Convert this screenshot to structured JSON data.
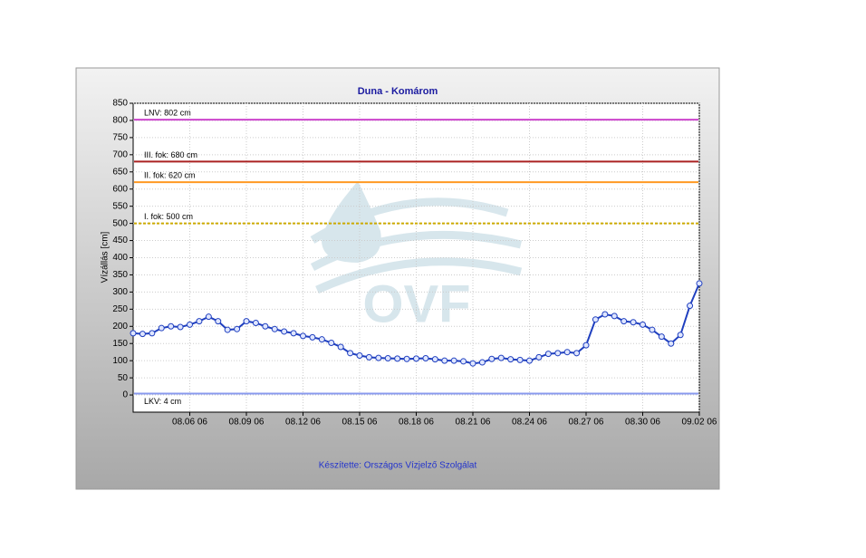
{
  "chart_data": {
    "type": "line",
    "title": "Duna - Komárom",
    "y_label": "Vízállás [cm]",
    "footer": "Készítette: Országos Vízjelző Szolgálat",
    "watermark": "OVF",
    "xlim": [
      "08.03 06",
      "09.02 06"
    ],
    "xticks": [
      "08.06 06",
      "08.09 06",
      "08.12 06",
      "08.15 06",
      "08.18 06",
      "08.21 06",
      "08.24 06",
      "08.27 06",
      "08.30 06",
      "09.02 06"
    ],
    "ylim": [
      -50,
      850
    ],
    "yticks": [
      0,
      50,
      100,
      150,
      200,
      250,
      300,
      350,
      400,
      450,
      500,
      550,
      600,
      650,
      700,
      750,
      800,
      850
    ],
    "grid": true,
    "x": [
      "08.03 06",
      "08.03 18",
      "08.04 06",
      "08.04 18",
      "08.05 06",
      "08.05 18",
      "08.06 06",
      "08.06 18",
      "08.07 06",
      "08.07 18",
      "08.08 06",
      "08.08 18",
      "08.09 06",
      "08.09 18",
      "08.10 06",
      "08.10 18",
      "08.11 06",
      "08.11 18",
      "08.12 06",
      "08.12 18",
      "08.13 06",
      "08.13 18",
      "08.14 06",
      "08.14 18",
      "08.15 06",
      "08.15 18",
      "08.16 06",
      "08.16 18",
      "08.17 06",
      "08.17 18",
      "08.18 06",
      "08.18 18",
      "08.19 06",
      "08.19 18",
      "08.20 06",
      "08.20 18",
      "08.21 06",
      "08.21 18",
      "08.22 06",
      "08.22 18",
      "08.23 06",
      "08.23 18",
      "08.24 06",
      "08.24 18",
      "08.25 06",
      "08.25 18",
      "08.26 06",
      "08.26 18",
      "08.27 06",
      "08.27 18",
      "08.28 06",
      "08.28 18",
      "08.29 06",
      "08.29 18",
      "08.30 06",
      "08.30 18",
      "08.31 06",
      "08.31 18",
      "09.01 06",
      "09.01 18",
      "09.02 06"
    ],
    "series": [
      {
        "name": "Vízállás",
        "color": "#1f3fbf",
        "values": [
          180,
          178,
          180,
          195,
          200,
          198,
          205,
          215,
          228,
          215,
          190,
          192,
          215,
          210,
          200,
          192,
          185,
          180,
          172,
          168,
          162,
          152,
          140,
          122,
          115,
          110,
          108,
          107,
          106,
          105,
          106,
          107,
          104,
          100,
          100,
          98,
          92,
          95,
          105,
          108,
          104,
          102,
          100,
          110,
          120,
          122,
          125,
          122,
          145,
          220,
          235,
          230,
          215,
          212,
          205,
          190,
          170,
          150,
          175,
          260,
          325
        ]
      }
    ],
    "thresholds": [
      {
        "value": 802,
        "label": "LNV: 802 cm",
        "color": "#cc44cc"
      },
      {
        "value": 680,
        "label": "III. fok: 680 cm",
        "color": "#aa2222"
      },
      {
        "value": 620,
        "label": "II. fok: 620 cm",
        "color": "#ff9922"
      },
      {
        "value": 500,
        "label": "I. fok: 500 cm",
        "color": "#ccaa00",
        "dashed": true
      },
      {
        "value": 4,
        "label": "LKV: 4 cm",
        "color": "#8899ee"
      }
    ]
  }
}
